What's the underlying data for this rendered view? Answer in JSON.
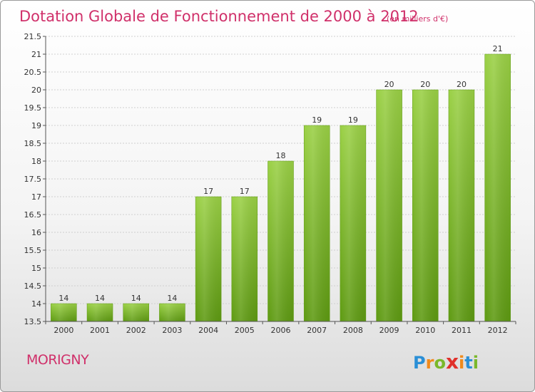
{
  "chart_data": {
    "type": "bar",
    "title": "Dotation Globale de Fonctionnement de 2000 à 2012",
    "subtitle": "(en milliers d'€)",
    "categories": [
      "2000",
      "2001",
      "2002",
      "2003",
      "2004",
      "2005",
      "2006",
      "2007",
      "2008",
      "2009",
      "2010",
      "2011",
      "2012"
    ],
    "values": [
      14,
      14,
      14,
      14,
      17,
      17,
      18,
      19,
      19,
      20,
      20,
      20,
      21
    ],
    "data_labels": [
      "14",
      "14",
      "14",
      "14",
      "17",
      "17",
      "18",
      "19",
      "19",
      "20",
      "20",
      "20",
      "21"
    ],
    "ylim": [
      13.5,
      21.5
    ],
    "yticks": [
      13.5,
      14,
      14.5,
      15,
      15.5,
      16,
      16.5,
      17,
      17.5,
      18,
      18.5,
      19,
      19.5,
      20,
      20.5,
      21,
      21.5
    ],
    "ytick_labels": [
      "13.5",
      "14",
      "14.5",
      "15",
      "15.5",
      "16",
      "16.5",
      "17",
      "17.5",
      "18",
      "18.5",
      "19",
      "19.5",
      "20",
      "20.5",
      "21",
      "21.5"
    ],
    "grid": true,
    "bar_color": "#7dbf2e"
  },
  "footer": {
    "commune": "MORIGNY",
    "brand_letters": [
      "P",
      "r",
      "o",
      "x",
      "i",
      "t",
      "i"
    ],
    "brand_colors": [
      "#2a8fd6",
      "#f08a1c",
      "#7ab82a",
      "#e0312b",
      "#f08a1c",
      "#2a8fd6",
      "#7ab82a"
    ]
  }
}
